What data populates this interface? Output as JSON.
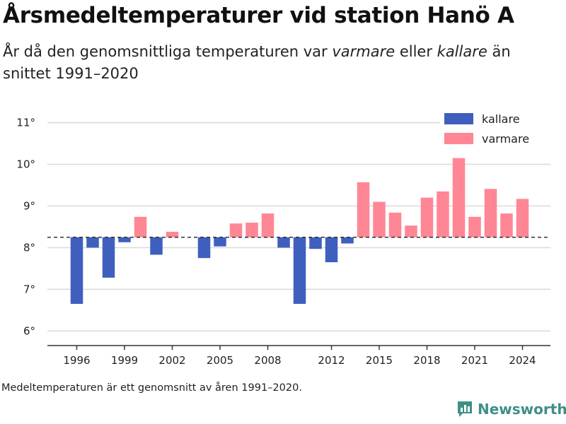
{
  "title": "Årsmedeltemperaturer vid station Hanö A",
  "subtitle": {
    "part1": "År då den genomsnittliga temperaturen var ",
    "warmer": "varmare",
    "part2": " eller ",
    "colder": "kallare",
    "part3": " än snittet 1991–2020"
  },
  "footnote": "Medeltemperaturen är ett genomsnitt av åren 1991–2020.",
  "brand": "Newsworthy",
  "colors": {
    "kallare": "#3f5fbf",
    "varmare": "#ff8694",
    "grid": "#d9d9d9",
    "axis": "#333333",
    "reference_line": "#333333",
    "brand": "#3e8f88"
  },
  "chart_data": {
    "type": "bar",
    "x": [
      1996,
      1997,
      1998,
      1999,
      2000,
      2001,
      2002,
      2003,
      2004,
      2005,
      2006,
      2007,
      2008,
      2009,
      2010,
      2011,
      2012,
      2013,
      2014,
      2015,
      2016,
      2017,
      2018,
      2019,
      2020,
      2021,
      2022,
      2023,
      2024
    ],
    "values": [
      6.65,
      8.0,
      7.28,
      8.13,
      8.74,
      7.83,
      8.38,
      null,
      7.75,
      8.03,
      8.58,
      8.6,
      8.82,
      8.0,
      6.65,
      7.97,
      7.65,
      8.1,
      9.57,
      9.1,
      8.84,
      8.53,
      9.2,
      9.35,
      10.15,
      8.74,
      9.41,
      8.82,
      9.17
    ],
    "baseline": 8.25,
    "baseline_style": "dashed",
    "series": [
      {
        "name": "kallare",
        "color": "#3f5fbf"
      },
      {
        "name": "varmare",
        "color": "#ff8694"
      }
    ],
    "x_ticks": [
      1996,
      1999,
      2002,
      2005,
      2008,
      2012,
      2015,
      2018,
      2021,
      2024
    ],
    "y_ticks": [
      6,
      7,
      8,
      9,
      10,
      11
    ],
    "y_tick_labels": [
      "6°",
      "7°",
      "8°",
      "9°",
      "10°",
      "11°"
    ],
    "ylim": [
      5.65,
      11.4
    ],
    "grid": true,
    "legend_position": "top-right",
    "title": "Årsmedeltemperaturer vid station Hanö A",
    "xlabel": "",
    "ylabel": ""
  }
}
